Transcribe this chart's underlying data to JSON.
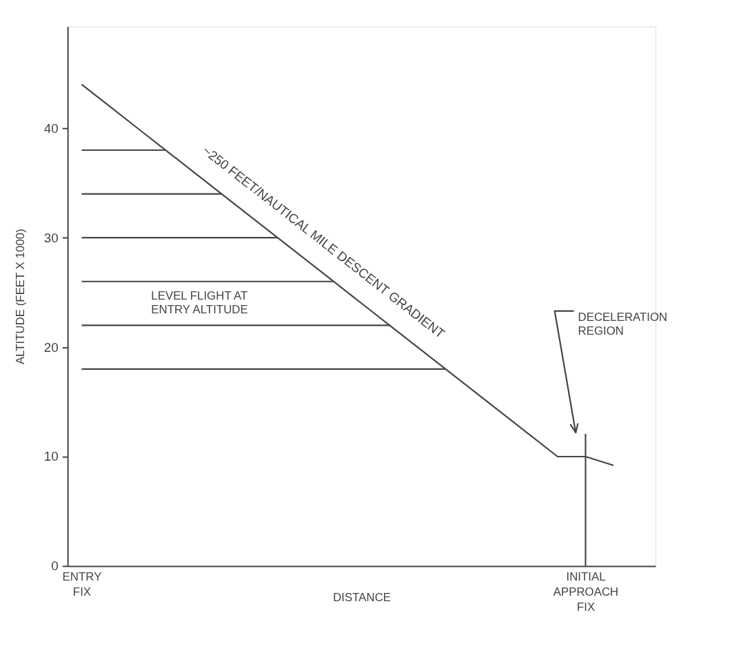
{
  "chart_data": {
    "type": "line",
    "xlabel": "DISTANCE",
    "ylabel": "ALTITUDE (FEET X 1000)",
    "categories": [
      "ENTRY FIX",
      null,
      null,
      null,
      null,
      null,
      null,
      null,
      null,
      null,
      null,
      null,
      null,
      null,
      null,
      null,
      null,
      null,
      "INITIAL APPROACH FIX",
      null,
      null
    ],
    "ylim": [
      0,
      49.3
    ],
    "yticks": [
      0,
      10,
      20,
      30,
      40
    ],
    "grid": false,
    "marker": "none",
    "line_style": "solid",
    "ref_lines": [
      {
        "axis": "x",
        "value": "INITIAL APPROACH FIX",
        "color": "#444444"
      }
    ],
    "series": [
      {
        "color": "#444444",
        "values": [
          44,
          42,
          40,
          38,
          36,
          34,
          32,
          30,
          28,
          26,
          24,
          22,
          20,
          18,
          16,
          14,
          12,
          10,
          10,
          9.2,
          null
        ]
      },
      {
        "color": "#444444",
        "values": [
          38,
          38,
          38,
          38,
          null,
          null,
          null,
          null,
          null,
          null,
          null,
          null,
          null,
          null,
          null,
          null,
          null,
          null,
          null,
          null,
          null
        ]
      },
      {
        "color": "#444444",
        "values": [
          34,
          34,
          34,
          34,
          34,
          34,
          null,
          null,
          null,
          null,
          null,
          null,
          null,
          null,
          null,
          null,
          null,
          null,
          null,
          null,
          null
        ]
      },
      {
        "color": "#444444",
        "values": [
          30,
          30,
          30,
          30,
          30,
          30,
          30,
          30,
          null,
          null,
          null,
          null,
          null,
          null,
          null,
          null,
          null,
          null,
          null,
          null,
          null
        ]
      },
      {
        "color": "#444444",
        "values": [
          26,
          26,
          26,
          26,
          26,
          26,
          26,
          26,
          26,
          26,
          null,
          null,
          null,
          null,
          null,
          null,
          null,
          null,
          null,
          null,
          null
        ]
      },
      {
        "color": "#444444",
        "values": [
          22,
          22,
          22,
          22,
          22,
          22,
          22,
          22,
          22,
          22,
          22,
          22,
          null,
          null,
          null,
          null,
          null,
          null,
          null,
          null,
          null
        ]
      },
      {
        "color": "#444444",
        "values": [
          18,
          18,
          18,
          18,
          18,
          18,
          18,
          18,
          18,
          18,
          18,
          18,
          18,
          18,
          null,
          null,
          null,
          null,
          null,
          null,
          null
        ]
      }
    ],
    "annotations": [
      "~250 FEET/NAUTICAL MILE DESCENT GRADIENT",
      "LEVEL FLIGHT AT\nENTRY ALTITUDE",
      "DECELERATION\nREGION"
    ]
  }
}
